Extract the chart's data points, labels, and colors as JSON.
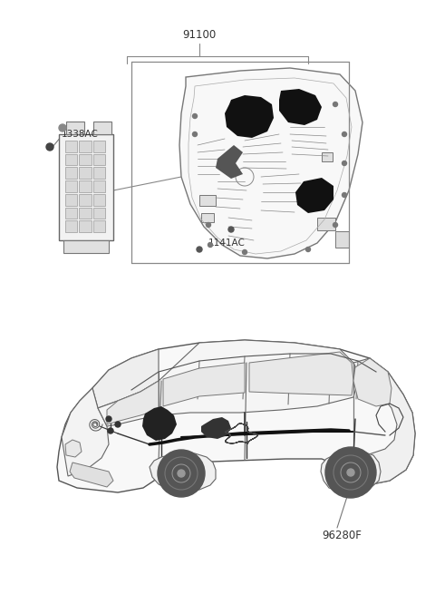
{
  "bg_color": "#ffffff",
  "label_91100": "91100",
  "label_1338AC": "1338AC",
  "label_1141AC": "1141AC",
  "label_96280F": "96280F",
  "line_color": "#888888",
  "dark_color": "#333333",
  "text_color": "#444444"
}
